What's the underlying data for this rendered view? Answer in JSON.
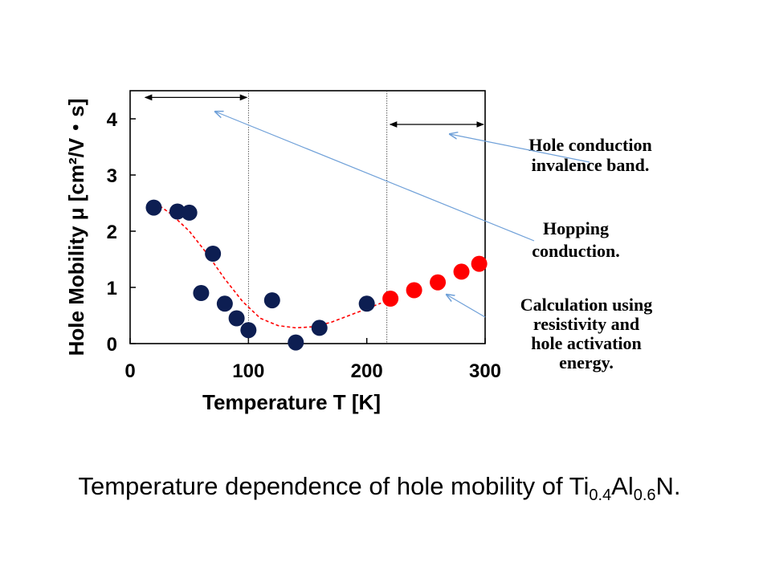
{
  "chart_data": {
    "type": "scatter",
    "xlabel": "Temperature T [K]",
    "ylabel": "Hole Mobility μ  [cm²/V・s]",
    "xlim": [
      0,
      300
    ],
    "ylim": [
      0,
      4.5
    ],
    "xticks": [
      "0",
      "100",
      "200",
      "300"
    ],
    "yticks": [
      "0",
      "1",
      "2",
      "3",
      "4"
    ],
    "grid": false,
    "series": [
      {
        "color": "#0d1e52",
        "x": [
          20,
          40,
          50,
          60,
          70,
          80,
          90,
          100,
          120,
          140,
          160,
          200
        ],
        "y": [
          2.42,
          2.35,
          2.33,
          0.9,
          1.6,
          0.71,
          0.45,
          0.24,
          0.77,
          0.02,
          0.28,
          0.71
        ]
      },
      {
        "color": "#ff0000",
        "x": [
          220,
          240,
          260,
          280,
          295
        ],
        "y": [
          0.8,
          0.95,
          1.09,
          1.28,
          1.42
        ]
      }
    ],
    "fit_curve": {
      "color": "#ff0000",
      "style": "dashed",
      "x": [
        25,
        35,
        50,
        65,
        80,
        95,
        110,
        125,
        140,
        155,
        170,
        185,
        200,
        212
      ],
      "y": [
        2.45,
        2.3,
        2.0,
        1.6,
        1.15,
        0.75,
        0.45,
        0.32,
        0.28,
        0.3,
        0.38,
        0.5,
        0.62,
        0.72
      ]
    },
    "region_lines_x": [
      100,
      217
    ],
    "region_arrows": [
      {
        "x_start": 10,
        "x_end": 100,
        "y": 4.38
      },
      {
        "x_start": 217,
        "x_end": 300,
        "y": 3.9
      }
    ],
    "annotations": [
      {
        "lines": [
          "Hole conduction",
          "invalence band."
        ]
      },
      {
        "lines": [
          "Hopping",
          "conduction."
        ]
      },
      {
        "lines": [
          "Calculation using",
          "resistivity and",
          "hole activation",
          "energy."
        ]
      }
    ]
  },
  "caption": {
    "prefix": "Temperature dependence of hole mobility of Ti",
    "sub1": "0.4",
    "mid": "Al",
    "sub2": "0.6",
    "suffix": "N."
  }
}
